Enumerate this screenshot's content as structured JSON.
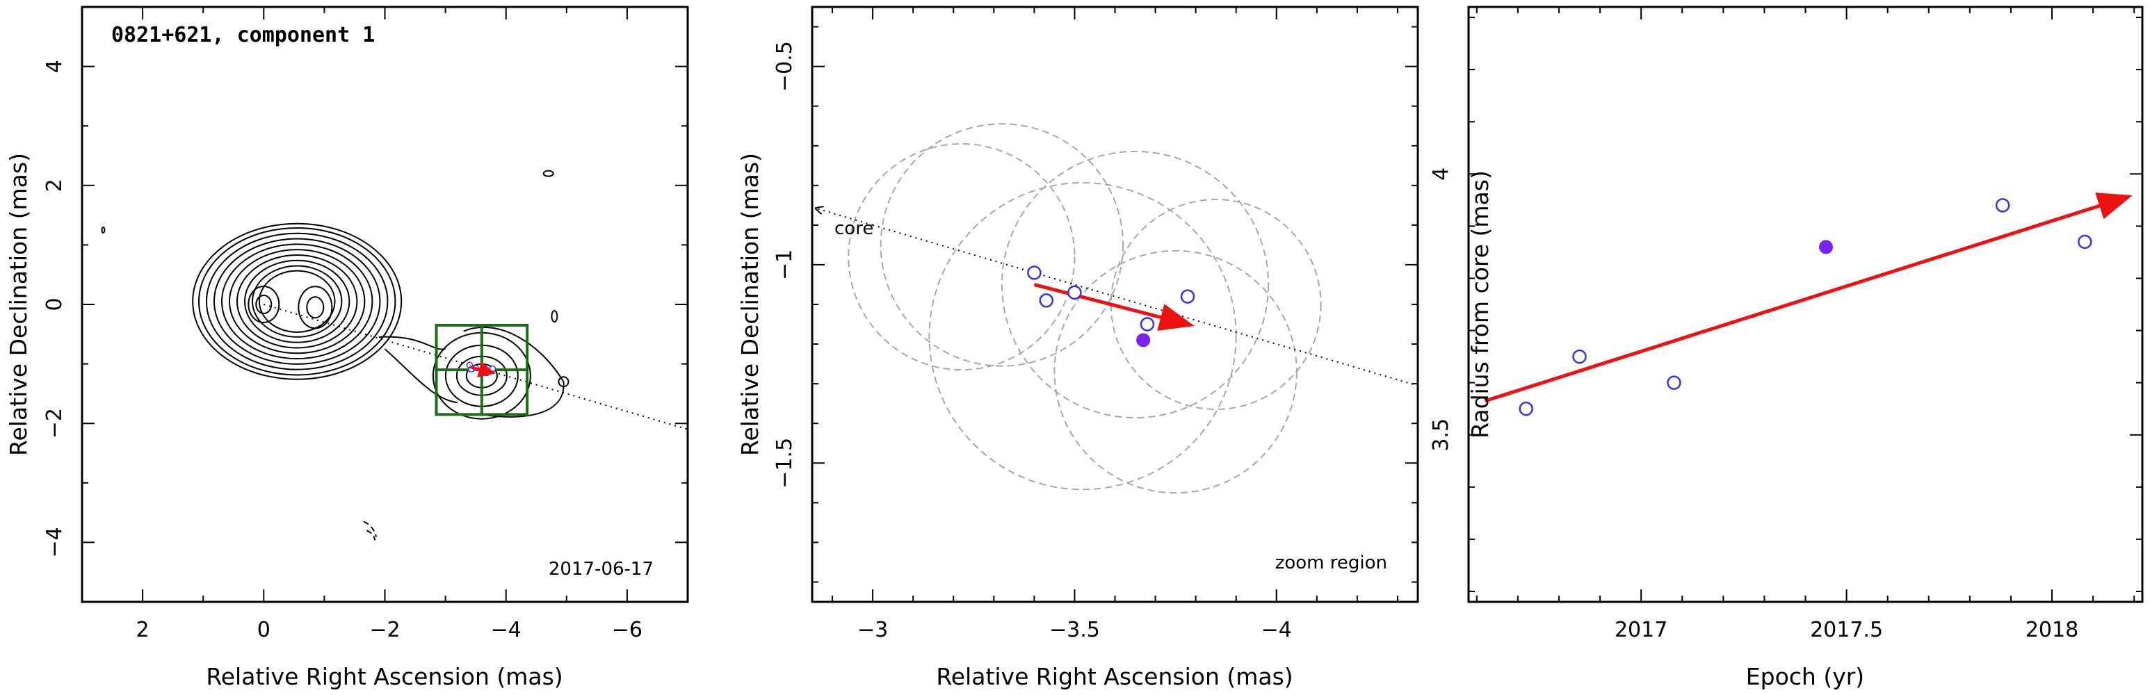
{
  "chart_data": [
    {
      "type": "contour",
      "title": "0821+621, component 1",
      "date_label": "2017-06-17",
      "xlabel": "Relative Right Ascension (mas)",
      "ylabel": "Relative Declination (mas)",
      "xlim": [
        3,
        -7
      ],
      "ylim": [
        -5,
        5
      ],
      "xticks": [
        2,
        0,
        -2,
        -4,
        -6
      ],
      "yticks": [
        -4,
        -2,
        0,
        2,
        4
      ],
      "core_peaks": [
        [
          0,
          0
        ],
        [
          -0.85,
          -0.05
        ]
      ],
      "trajectory_line": {
        "from": [
          0,
          0
        ],
        "to": [
          -7,
          -2.1
        ]
      },
      "zoom_box": {
        "ra": [
          -2.85,
          -4.35
        ],
        "dec": [
          -0.35,
          -1.85
        ]
      },
      "component_position": [
        -3.6,
        -1.15
      ],
      "colors": {
        "contour": "#000000",
        "zoom_box": "#1a6e1a",
        "arrow": "#ee1111",
        "points": "#3333ee"
      }
    },
    {
      "type": "scatter",
      "annotation": "zoom region",
      "core_label": "core",
      "xlabel": "Relative Right Ascension (mas)",
      "ylabel": "Relative Declination (mas)",
      "xlim": [
        -2.85,
        -4.35
      ],
      "ylim": [
        -1.85,
        -0.35
      ],
      "xticks": [
        -3,
        -3.5,
        -4
      ],
      "yticks": [
        -0.5,
        -1,
        -1.5
      ],
      "points_open": [
        [
          -3.4,
          -1.02
        ],
        [
          -3.43,
          -1.09
        ],
        [
          -3.5,
          -1.07
        ],
        [
          -3.68,
          -1.15
        ],
        [
          -3.78,
          -1.08
        ]
      ],
      "point_filled": [
        -3.67,
        -1.19
      ],
      "arrow": {
        "from": [
          -3.4,
          -1.05
        ],
        "to": [
          -3.78,
          -1.15
        ]
      },
      "error_circles": [
        {
          "center": [
            -3.22,
            -0.98
          ],
          "radius": 0.28
        },
        {
          "center": [
            -3.32,
            -0.95
          ],
          "radius": 0.3
        },
        {
          "center": [
            -3.52,
            -1.18
          ],
          "radius": 0.38
        },
        {
          "center": [
            -3.65,
            -1.05
          ],
          "radius": 0.33
        },
        {
          "center": [
            -3.85,
            -1.1
          ],
          "radius": 0.26
        },
        {
          "center": [
            -3.75,
            -1.27
          ],
          "radius": 0.3
        }
      ],
      "colors": {
        "points": "#3333ee",
        "filled_point": "#7a22ee",
        "arrow": "#ee1111",
        "circles": "#a8a8a8"
      }
    },
    {
      "type": "scatter",
      "xlabel": "Epoch (yr)",
      "ylabel": "Radius from core (mas)",
      "xlim": [
        2016.58,
        2018.22
      ],
      "ylim": [
        3.18,
        4.32
      ],
      "xticks": [
        2017,
        2017.5,
        2018
      ],
      "yticks": [
        3.5,
        4
      ],
      "points_open": [
        [
          2016.72,
          3.55
        ],
        [
          2016.85,
          3.65
        ],
        [
          2017.08,
          3.6
        ],
        [
          2017.88,
          3.94
        ],
        [
          2018.08,
          3.87
        ]
      ],
      "point_filled": [
        2017.45,
        3.86
      ],
      "fit_arrow": {
        "from": [
          2016.62,
          3.565
        ],
        "to": [
          2018.18,
          3.955
        ]
      },
      "colors": {
        "points": "#3333ee",
        "filled_point": "#7a22ee",
        "arrow": "#ee1111"
      }
    }
  ]
}
